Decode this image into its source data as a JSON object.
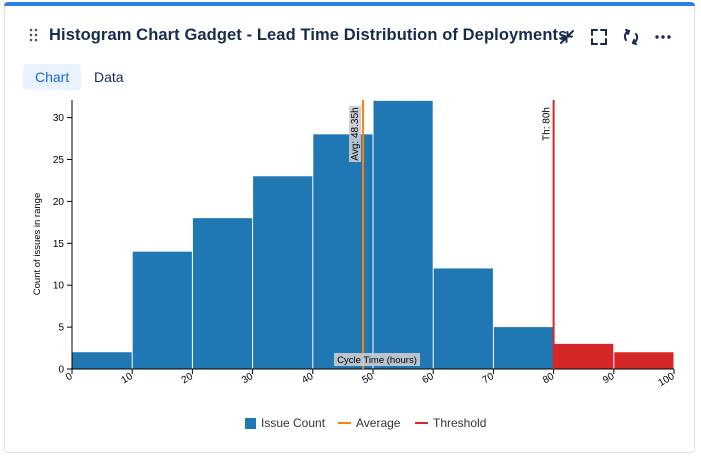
{
  "gadget": {
    "title": "Histogram Chart Gadget - Lead Time Distribution of Deployments",
    "accent_color": "#2f7ee6",
    "header_icons": [
      "drag-handle-icon",
      "minimize-icon",
      "fullscreen-icon",
      "refresh-icon",
      "more-icon"
    ]
  },
  "tabs": [
    {
      "label": "Chart",
      "active": true
    },
    {
      "label": "Data",
      "active": false
    }
  ],
  "chart_data": {
    "type": "bar",
    "subtype": "histogram",
    "bin_edges": [
      0,
      10,
      20,
      30,
      40,
      50,
      60,
      70,
      80,
      90,
      100
    ],
    "values": [
      2,
      14,
      18,
      23,
      28,
      32,
      12,
      5,
      3,
      2
    ],
    "above_threshold": [
      false,
      false,
      false,
      false,
      false,
      false,
      false,
      false,
      true,
      true
    ],
    "xlabel": "Cycle Time (hours)",
    "ylabel": "Count of issues in range",
    "xlim": [
      0,
      100
    ],
    "ylim": [
      0,
      32
    ],
    "xticks": [
      0,
      10,
      20,
      30,
      40,
      50,
      60,
      70,
      80,
      90,
      100
    ],
    "yticks": [
      0,
      5,
      10,
      15,
      20,
      25,
      30
    ],
    "average": {
      "value": 48.35,
      "label": "Avg: 48.35h",
      "color": "#ff7f0e"
    },
    "threshold": {
      "value": 80,
      "label": "Th: 80h",
      "color": "#d62728"
    },
    "colors": {
      "normal": "#1f77b4",
      "exceeded": "#d62728"
    },
    "legend": [
      {
        "label": "Issue Count",
        "kind": "box",
        "color": "#1f77b4"
      },
      {
        "label": "Average",
        "kind": "line",
        "color": "#ff7f0e"
      },
      {
        "label": "Threshold",
        "kind": "line",
        "color": "#d62728"
      }
    ],
    "legend_position": "bottom"
  }
}
